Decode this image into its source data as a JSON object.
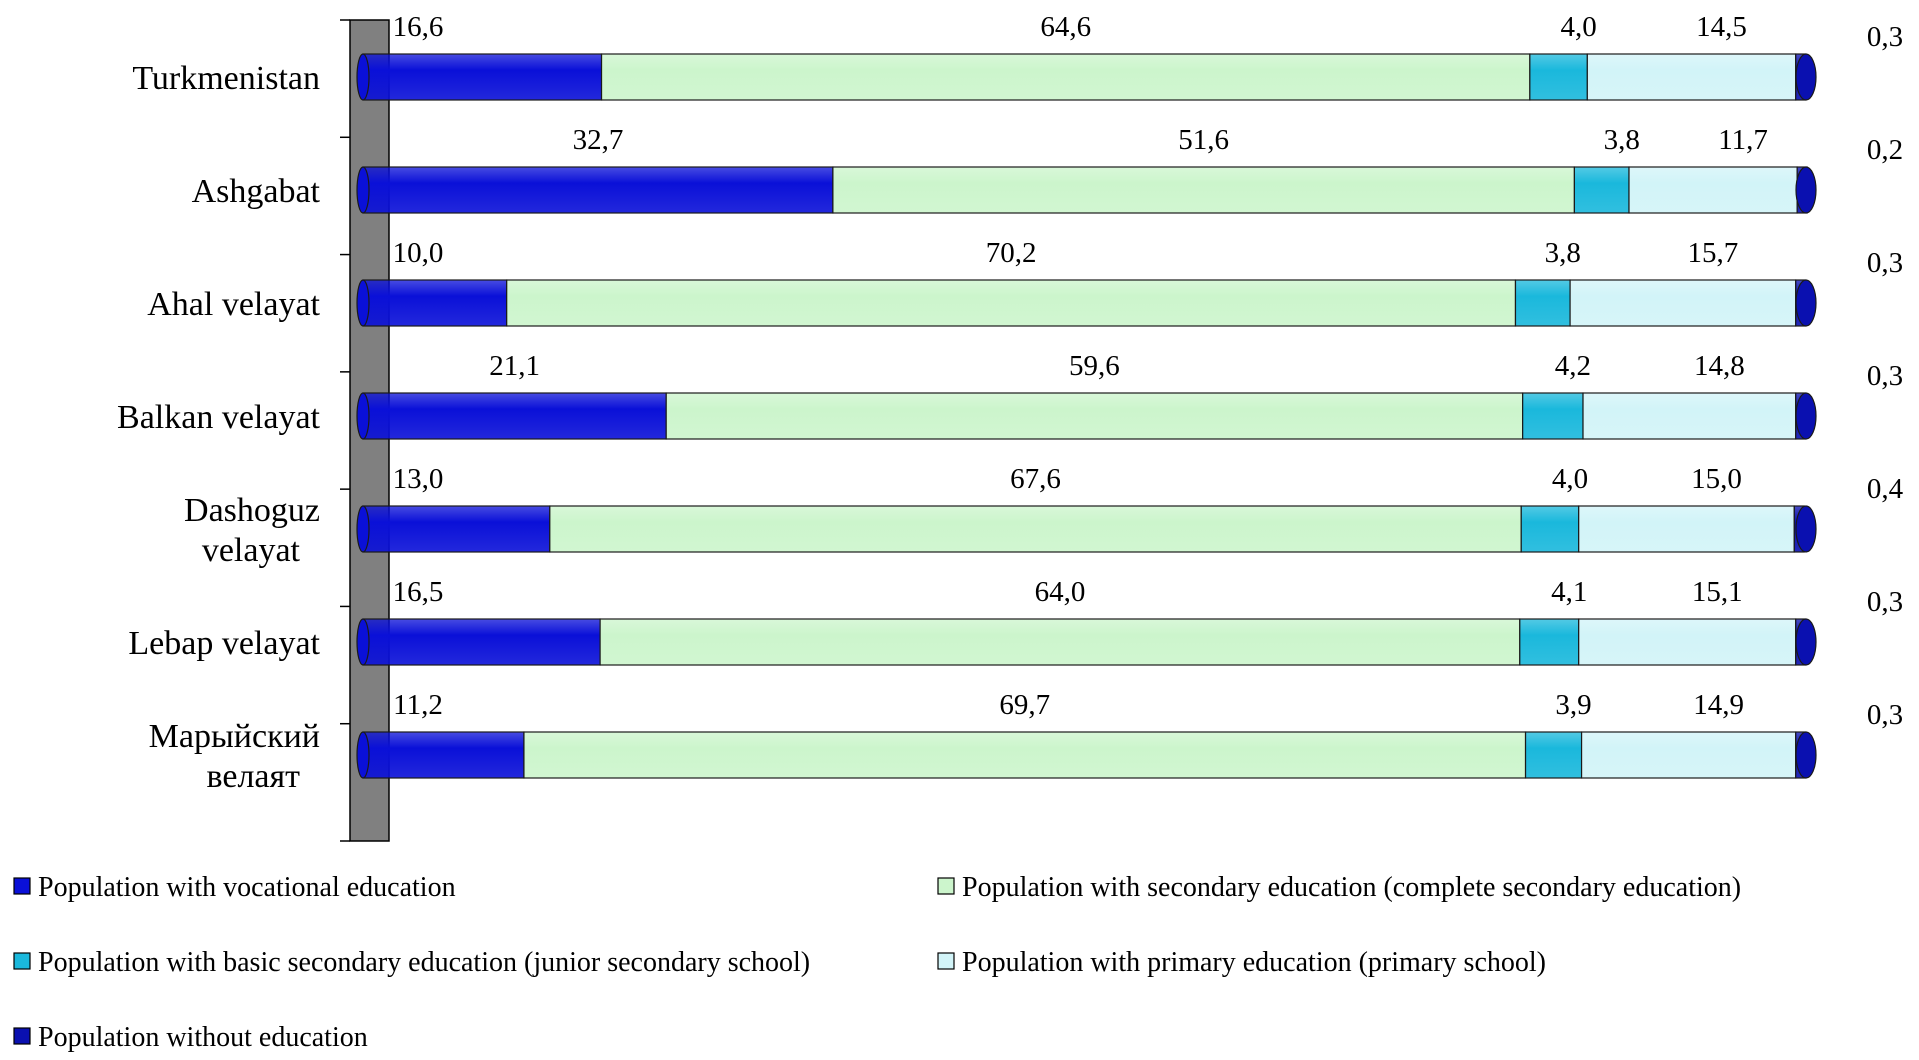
{
  "chart_data": {
    "type": "bar",
    "orientation": "horizontal",
    "stacked": true,
    "stack_mode": "percent",
    "title": "",
    "xlabel": "",
    "ylabel": "",
    "xlim": [
      0,
      100
    ],
    "grid": false,
    "legend_position": "bottom",
    "categories": [
      "Turkmenistan",
      "Ashgabat",
      "Ahal velayat",
      "Balkan velayat",
      "Dashoguz velayat",
      "Lebap velayat",
      "Марыйский велаят"
    ],
    "category_lines": [
      [
        "Turkmenistan"
      ],
      [
        "Ashgabat"
      ],
      [
        "Ahal velayat"
      ],
      [
        "Balkan velayat"
      ],
      [
        "Dashoguz",
        "velayat"
      ],
      [
        "Lebap velayat"
      ],
      [
        "Марыйский",
        "велаят"
      ]
    ],
    "series": [
      {
        "name": "Population with vocational education",
        "color": "#0a10d8",
        "values": [
          16.6,
          32.7,
          10.0,
          21.1,
          13.0,
          16.5,
          11.2
        ],
        "labels": [
          "16,6",
          "32,7",
          "10,0",
          "21,1",
          "13,0",
          "16,5",
          "11,2"
        ]
      },
      {
        "name": "Population with secondary education (complete secondary education)",
        "color": "#ccf5cc",
        "values": [
          64.6,
          51.6,
          70.2,
          59.6,
          67.6,
          64.0,
          69.7
        ],
        "labels": [
          "64,6",
          "51,6",
          "70,2",
          "59,6",
          "67,6",
          "64,0",
          "69,7"
        ]
      },
      {
        "name": "Population with basic secondary education (junior secondary school)",
        "color": "#1ab8dc",
        "values": [
          4.0,
          3.8,
          3.8,
          4.2,
          4.0,
          4.1,
          3.9
        ],
        "labels": [
          "4,0",
          "3,8",
          "3,8",
          "4,2",
          "4,0",
          "4,1",
          "3,9"
        ]
      },
      {
        "name": "Population with primary education (primary school)",
        "color": "#d2f4f8",
        "values": [
          14.5,
          11.7,
          15.7,
          14.8,
          15.0,
          15.1,
          14.9
        ],
        "labels": [
          "14,5",
          "11,7",
          "15,7",
          "14,8",
          "15,0",
          "15,1",
          "14,9"
        ]
      },
      {
        "name": "Population without education",
        "color": "#0a10b0",
        "values": [
          0.3,
          0.2,
          0.3,
          0.3,
          0.4,
          0.3,
          0.3
        ],
        "labels": [
          "0,3",
          "0,2",
          "0,3",
          "0,3",
          "0,4",
          "0,3",
          "0,3"
        ]
      }
    ]
  }
}
